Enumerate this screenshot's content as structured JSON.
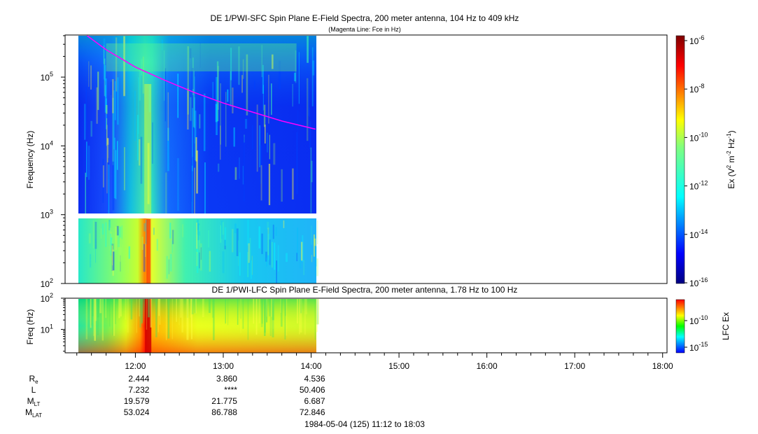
{
  "chart_data": [
    {
      "type": "heatmap",
      "title": "DE 1/PWI-SFC  Spin Plane E-Field Spectra, 200 meter antenna, 104 Hz to 409 kHz",
      "subtitle": "(Magenta Line: Fce in Hz)",
      "ylabel": "Frequency (Hz)",
      "yscale": "log",
      "ylim": [
        100,
        409000
      ],
      "y_tick_labels": [
        {
          "base": "10",
          "exp": "2"
        },
        {
          "base": "10",
          "exp": "3"
        },
        {
          "base": "10",
          "exp": "4"
        },
        {
          "base": "10",
          "exp": "5"
        }
      ],
      "y_ticks": [
        100,
        1000,
        10000,
        100000
      ],
      "data_time_range": [
        "11:25",
        "14:05"
      ],
      "fce_line": {
        "name": "Fce in Hz",
        "color": "#ff00ff",
        "points": [
          {
            "t": "11:27",
            "f": 400000
          },
          {
            "t": "11:40",
            "f": 250000
          },
          {
            "t": "12:00",
            "f": 140000
          },
          {
            "t": "12:20",
            "f": 90000
          },
          {
            "t": "12:40",
            "f": 60000
          },
          {
            "t": "13:00",
            "f": 42000
          },
          {
            "t": "13:20",
            "f": 31000
          },
          {
            "t": "13:40",
            "f": 23000
          },
          {
            "t": "14:03",
            "f": 17500
          }
        ]
      },
      "colorbar": {
        "label_base": "Ex (V",
        "label_exp1": "2",
        "label_mid": " m",
        "label_exp2": "-2",
        "label_mid2": " Hz",
        "label_exp3": "-1",
        "label_end": ")",
        "scale": "log",
        "range": [
          1e-16,
          1e-06
        ],
        "tick_labels": [
          {
            "base": "10",
            "exp": "-6"
          },
          {
            "base": "10",
            "exp": "-8"
          },
          {
            "base": "10",
            "exp": "-10"
          },
          {
            "base": "10",
            "exp": "-12"
          },
          {
            "base": "10",
            "exp": "-14"
          },
          {
            "base": "10",
            "exp": "-16"
          }
        ]
      }
    },
    {
      "type": "heatmap",
      "title": "DE 1/PWI-LFC  Spin Plane E-Field Spectra, 200 meter antenna, 1.78 Hz to 100 Hz",
      "ylabel": "Freq (Hz)",
      "yscale": "log",
      "ylim": [
        1.78,
        100
      ],
      "y_tick_labels": [
        {
          "base": "10",
          "exp": "1"
        },
        {
          "base": "10",
          "exp": "2"
        }
      ],
      "y_ticks": [
        10,
        100
      ],
      "data_time_range": [
        "11:25",
        "14:05"
      ],
      "colorbar": {
        "label": "LFC Ex",
        "scale": "log",
        "tick_labels": [
          {
            "base": "10",
            "exp": "-10"
          },
          {
            "base": "10",
            "exp": "-15"
          }
        ]
      }
    }
  ],
  "time_axis": {
    "range": [
      "11:12",
      "18:03"
    ],
    "ticks": [
      "12:00",
      "13:00",
      "14:00",
      "15:00",
      "16:00",
      "17:00",
      "18:00"
    ],
    "caption": "1984-05-04 (125) 11:12 to 18:03"
  },
  "ephemeris": {
    "rows": [
      {
        "label": "R",
        "sub": "e",
        "values": [
          "2.444",
          "3.860",
          "4.536"
        ]
      },
      {
        "label": "L",
        "sub": "",
        "values": [
          "7.232",
          "****",
          "50.406"
        ]
      },
      {
        "label": "M",
        "sub": "LT",
        "values": [
          "19.579",
          "21.775",
          "6.687"
        ]
      },
      {
        "label": "M",
        "sub": "LAT",
        "values": [
          "53.024",
          "86.788",
          "72.846"
        ]
      }
    ]
  },
  "colors": {
    "fce_line": "#ff00ff",
    "background": "#ffffff"
  }
}
